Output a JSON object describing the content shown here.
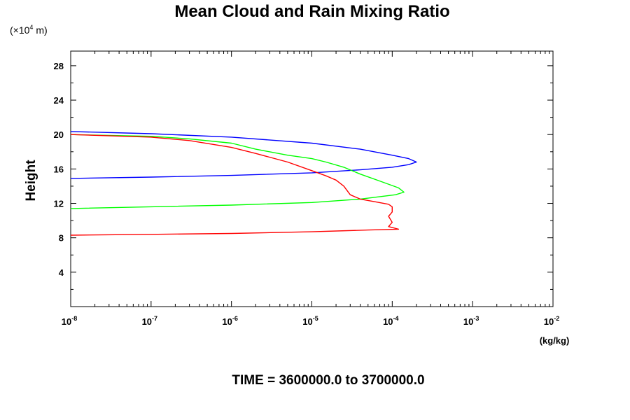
{
  "chart_data": {
    "type": "line",
    "title": "Mean Cloud and Rain Mixing Ratio",
    "ylabel": "Height",
    "y_unit": "(×10",
    "y_unit_exp": "4",
    "y_unit_tail": " m)",
    "xlabel": "(kg/kg)",
    "footer": "TIME = 3600000.0 to 3700000.0",
    "x_scale": "log",
    "xlim": [
      1e-08,
      0.01
    ],
    "ylim": [
      0,
      29.7
    ],
    "x_ticks": [
      {
        "base": "10",
        "exp": "-8",
        "value": 1e-08
      },
      {
        "base": "10",
        "exp": "-7",
        "value": 1e-07
      },
      {
        "base": "10",
        "exp": "-6",
        "value": 1e-06
      },
      {
        "base": "10",
        "exp": "-5",
        "value": 1e-05
      },
      {
        "base": "10",
        "exp": "-4",
        "value": 0.0001
      },
      {
        "base": "10",
        "exp": "-3",
        "value": 0.001
      },
      {
        "base": "10",
        "exp": "-2",
        "value": 0.01
      }
    ],
    "y_ticks": [
      4,
      8,
      12,
      16,
      20,
      24,
      28
    ],
    "y_tick_labels": [
      "4",
      "8",
      "12",
      "16",
      "20",
      "24",
      "28"
    ],
    "grid": false,
    "series": [
      {
        "color": "#0000ff",
        "points": [
          [
            1e-08,
            14.9
          ],
          [
            1e-07,
            15.05
          ],
          [
            1e-06,
            15.25
          ],
          [
            1e-05,
            15.55
          ],
          [
            4e-05,
            15.9
          ],
          [
            0.0001,
            16.2
          ],
          [
            0.00016,
            16.5
          ],
          [
            0.0002,
            16.8
          ],
          [
            0.00016,
            17.2
          ],
          [
            0.0001,
            17.6
          ],
          [
            4e-05,
            18.3
          ],
          [
            1e-05,
            19.0
          ],
          [
            1e-06,
            19.7
          ],
          [
            1e-07,
            20.1
          ],
          [
            1e-08,
            20.35
          ]
        ]
      },
      {
        "color": "#00ff00",
        "points": [
          [
            1e-08,
            11.4
          ],
          [
            1e-07,
            11.6
          ],
          [
            1e-06,
            11.8
          ],
          [
            1e-05,
            12.1
          ],
          [
            4e-05,
            12.5
          ],
          [
            0.00011,
            13.0
          ],
          [
            0.00014,
            13.3
          ],
          [
            0.00012,
            13.8
          ],
          [
            7e-05,
            14.6
          ],
          [
            4e-05,
            15.4
          ],
          [
            2.5e-05,
            16.2
          ],
          [
            1.5e-05,
            16.8
          ],
          [
            1e-05,
            17.2
          ],
          [
            5e-06,
            17.6
          ],
          [
            2e-06,
            18.3
          ],
          [
            1e-06,
            19.0
          ],
          [
            3e-07,
            19.5
          ],
          [
            1e-07,
            19.8
          ],
          [
            1e-08,
            20.0
          ]
        ]
      },
      {
        "color": "#ff0000",
        "points": [
          [
            1e-08,
            8.3
          ],
          [
            1e-07,
            8.4
          ],
          [
            1e-06,
            8.5
          ],
          [
            1e-05,
            8.7
          ],
          [
            5e-05,
            8.9
          ],
          [
            0.00012,
            9.0
          ],
          [
            9e-05,
            9.3
          ],
          [
            0.0001,
            9.8
          ],
          [
            9e-05,
            10.5
          ],
          [
            0.0001,
            11.0
          ],
          [
            0.0001,
            11.6
          ],
          [
            9e-05,
            11.9
          ],
          [
            6e-05,
            12.2
          ],
          [
            4e-05,
            12.5
          ],
          [
            3e-05,
            13.0
          ],
          [
            2.5e-05,
            14.0
          ],
          [
            2e-05,
            14.7
          ],
          [
            1.5e-05,
            15.2
          ],
          [
            1e-05,
            15.8
          ],
          [
            5e-06,
            16.8
          ],
          [
            2e-06,
            17.8
          ],
          [
            1e-06,
            18.5
          ],
          [
            3e-07,
            19.3
          ],
          [
            1e-07,
            19.7
          ],
          [
            1e-08,
            20.0
          ]
        ]
      }
    ]
  }
}
